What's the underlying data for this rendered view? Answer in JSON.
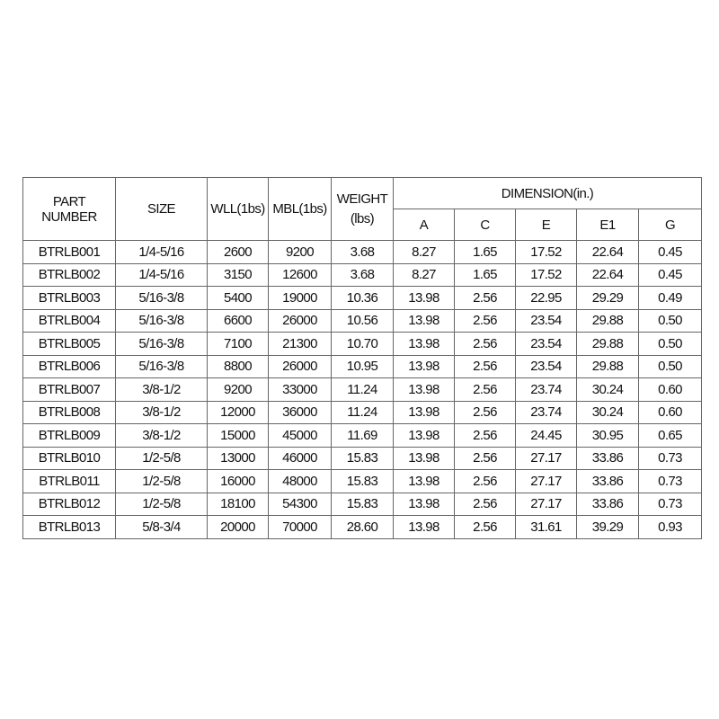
{
  "table": {
    "headers": {
      "part_number": "PART\nNUMBER",
      "size": "SIZE",
      "wll": "WLL(1bs)",
      "mbl": "MBL(1bs)",
      "weight": "WEIGHT\n(lbs)",
      "dimension": "DIMENSION(in.)",
      "dimension_columns": [
        "A",
        "C",
        "E",
        "E1",
        "G"
      ]
    },
    "rows": [
      [
        "BTRLB001",
        "1/4-5/16",
        "2600",
        "9200",
        "3.68",
        "8.27",
        "1.65",
        "17.52",
        "22.64",
        "0.45"
      ],
      [
        "BTRLB002",
        "1/4-5/16",
        "3150",
        "12600",
        "3.68",
        "8.27",
        "1.65",
        "17.52",
        "22.64",
        "0.45"
      ],
      [
        "BTRLB003",
        "5/16-3/8",
        "5400",
        "19000",
        "10.36",
        "13.98",
        "2.56",
        "22.95",
        "29.29",
        "0.49"
      ],
      [
        "BTRLB004",
        "5/16-3/8",
        "6600",
        "26000",
        "10.56",
        "13.98",
        "2.56",
        "23.54",
        "29.88",
        "0.50"
      ],
      [
        "BTRLB005",
        "5/16-3/8",
        "7100",
        "21300",
        "10.70",
        "13.98",
        "2.56",
        "23.54",
        "29.88",
        "0.50"
      ],
      [
        "BTRLB006",
        "5/16-3/8",
        "8800",
        "26000",
        "10.95",
        "13.98",
        "2.56",
        "23.54",
        "29.88",
        "0.50"
      ],
      [
        "BTRLB007",
        "3/8-1/2",
        "9200",
        "33000",
        "11.24",
        "13.98",
        "2.56",
        "23.74",
        "30.24",
        "0.60"
      ],
      [
        "BTRLB008",
        "3/8-1/2",
        "12000",
        "36000",
        "11.24",
        "13.98",
        "2.56",
        "23.74",
        "30.24",
        "0.60"
      ],
      [
        "BTRLB009",
        "3/8-1/2",
        "15000",
        "45000",
        "11.69",
        "13.98",
        "2.56",
        "24.45",
        "30.95",
        "0.65"
      ],
      [
        "BTRLB010",
        "1/2-5/8",
        "13000",
        "46000",
        "15.83",
        "13.98",
        "2.56",
        "27.17",
        "33.86",
        "0.73"
      ],
      [
        "BTRLB011",
        "1/2-5/8",
        "16000",
        "48000",
        "15.83",
        "13.98",
        "2.56",
        "27.17",
        "33.86",
        "0.73"
      ],
      [
        "BTRLB012",
        "1/2-5/8",
        "18100",
        "54300",
        "15.83",
        "13.98",
        "2.56",
        "27.17",
        "33.86",
        "0.73"
      ],
      [
        "BTRLB013",
        "5/8-3/4",
        "20000",
        "70000",
        "28.60",
        "13.98",
        "2.56",
        "31.61",
        "39.29",
        "0.93"
      ]
    ]
  }
}
